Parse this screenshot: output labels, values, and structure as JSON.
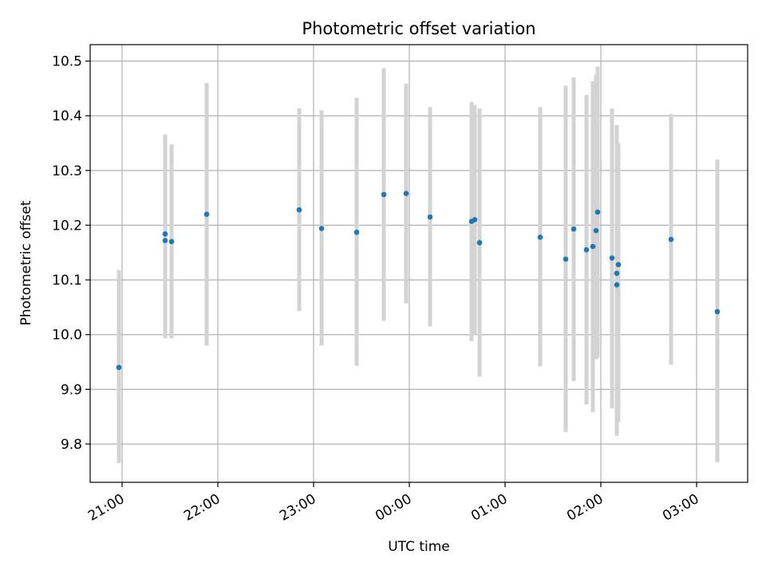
{
  "chart_data": {
    "type": "scatter",
    "title": "Photometric offset variation",
    "xlabel": "UTC time",
    "ylabel": "Photometric offset",
    "x_ticks": [
      "21:00",
      "22:00",
      "23:00",
      "00:00",
      "01:00",
      "02:00",
      "03:00"
    ],
    "y_ticks": [
      "9.8",
      "9.9",
      "10.0",
      "10.1",
      "10.2",
      "10.3",
      "10.4",
      "10.5"
    ],
    "xlim": [
      "20:40",
      "03:32"
    ],
    "ylim": [
      9.73,
      10.53
    ],
    "grid": true,
    "colors": {
      "point": "#1f77b4",
      "errorbar": "#d3d3d3",
      "grid": "#b0b0b0"
    },
    "points": [
      {
        "x": "20:58",
        "y": 9.94,
        "ylo": 9.765,
        "yhi": 10.118
      },
      {
        "x": "21:27",
        "y": 10.172,
        "ylo": 9.993,
        "yhi": 10.355
      },
      {
        "x": "21:27",
        "y": 10.184,
        "ylo": 10.0,
        "yhi": 10.366
      },
      {
        "x": "21:31",
        "y": 10.17,
        "ylo": 9.993,
        "yhi": 10.348
      },
      {
        "x": "21:53",
        "y": 10.22,
        "ylo": 9.98,
        "yhi": 10.46
      },
      {
        "x": "22:51",
        "y": 10.228,
        "ylo": 10.043,
        "yhi": 10.414
      },
      {
        "x": "23:05",
        "y": 10.194,
        "ylo": 9.98,
        "yhi": 10.41
      },
      {
        "x": "23:27",
        "y": 10.187,
        "ylo": 9.943,
        "yhi": 10.433
      },
      {
        "x": "23:44",
        "y": 10.256,
        "ylo": 10.025,
        "yhi": 10.487
      },
      {
        "x": "23:58",
        "y": 10.258,
        "ylo": 10.057,
        "yhi": 10.459
      },
      {
        "x": "00:13",
        "y": 10.215,
        "ylo": 10.015,
        "yhi": 10.416
      },
      {
        "x": "00:39",
        "y": 10.207,
        "ylo": 9.988,
        "yhi": 10.425
      },
      {
        "x": "00:41",
        "y": 10.21,
        "ylo": 10.0,
        "yhi": 10.42
      },
      {
        "x": "00:44",
        "y": 10.168,
        "ylo": 9.923,
        "yhi": 10.413
      },
      {
        "x": "01:22",
        "y": 10.178,
        "ylo": 9.942,
        "yhi": 10.416
      },
      {
        "x": "01:38",
        "y": 10.138,
        "ylo": 9.822,
        "yhi": 10.455
      },
      {
        "x": "01:43",
        "y": 10.193,
        "ylo": 9.915,
        "yhi": 10.47
      },
      {
        "x": "01:51",
        "y": 10.155,
        "ylo": 9.872,
        "yhi": 10.438
      },
      {
        "x": "01:55",
        "y": 10.161,
        "ylo": 9.858,
        "yhi": 10.463
      },
      {
        "x": "01:57",
        "y": 10.19,
        "ylo": 9.955,
        "yhi": 10.475
      },
      {
        "x": "01:58",
        "y": 10.224,
        "ylo": 9.958,
        "yhi": 10.49
      },
      {
        "x": "02:07",
        "y": 10.14,
        "ylo": 9.865,
        "yhi": 10.413
      },
      {
        "x": "02:10",
        "y": 10.091,
        "ylo": 9.815,
        "yhi": 10.383
      },
      {
        "x": "02:10",
        "y": 10.112,
        "ylo": 9.838,
        "yhi": 10.356
      },
      {
        "x": "02:11",
        "y": 10.128,
        "ylo": 9.84,
        "yhi": 10.35
      },
      {
        "x": "02:44",
        "y": 10.174,
        "ylo": 9.945,
        "yhi": 10.403
      },
      {
        "x": "03:13",
        "y": 10.042,
        "ylo": 9.767,
        "yhi": 10.32
      }
    ]
  }
}
